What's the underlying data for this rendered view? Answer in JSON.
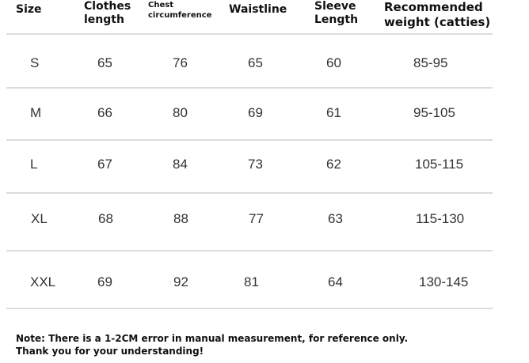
{
  "headers": {
    "size": "Size",
    "clothes": [
      "Clothes",
      "length"
    ],
    "chest": [
      "Chest",
      "circumference"
    ],
    "waist": "Waistline",
    "sleeve": [
      "Sleeve",
      "Length"
    ],
    "recommended": [
      "Recommended",
      "weight (catties)"
    ]
  },
  "rows": [
    {
      "size": "S",
      "clothes_length": "65",
      "chest": "76",
      "waist": "65",
      "sleeve": "60",
      "weight": "85-95"
    },
    {
      "size": "M",
      "clothes_length": "66",
      "chest": "80",
      "waist": "69",
      "sleeve": "61",
      "weight": "95-105"
    },
    {
      "size": "L",
      "clothes_length": "67",
      "chest": "84",
      "waist": "73",
      "sleeve": "62",
      "weight": "105-115"
    },
    {
      "size": "XL",
      "clothes_length": "68",
      "chest": "88",
      "waist": "77",
      "sleeve": "63",
      "weight": "115-130"
    },
    {
      "size": "XXL",
      "clothes_length": "69",
      "chest": "92",
      "waist": "81",
      "sleeve": "64",
      "weight": "130-145"
    }
  ],
  "note": {
    "line1": "Note: There is a 1-2CM error in manual measurement, for reference only.",
    "line2": "Thank you for your understanding!"
  }
}
